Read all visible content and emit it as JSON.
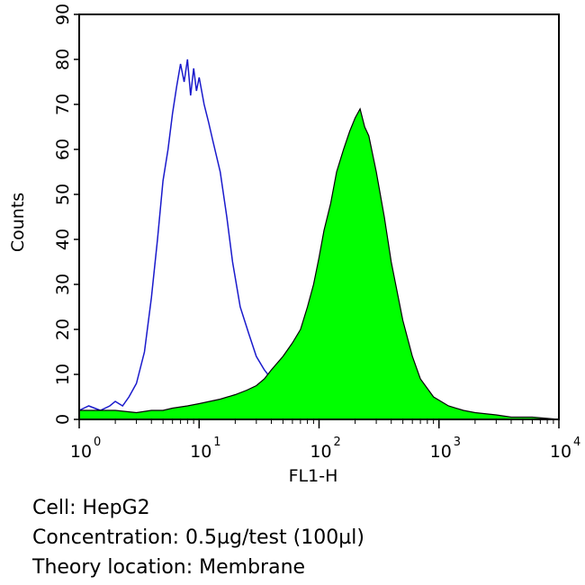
{
  "chart_data": {
    "type": "area",
    "xlabel": "FL1-H",
    "ylabel": "Counts",
    "x_scale": "log",
    "xlim": [
      1,
      10000
    ],
    "ylim": [
      0,
      90
    ],
    "x_ticks": [
      {
        "base": "10",
        "exp": "0",
        "value": 1
      },
      {
        "base": "10",
        "exp": "1",
        "value": 10
      },
      {
        "base": "10",
        "exp": "2",
        "value": 100
      },
      {
        "base": "10",
        "exp": "3",
        "value": 1000
      },
      {
        "base": "10",
        "exp": "4",
        "value": 10000
      }
    ],
    "y_ticks": [
      "0",
      "10",
      "20",
      "30",
      "40",
      "50",
      "60",
      "70",
      "80",
      "90"
    ],
    "series": [
      {
        "style": "outline",
        "color": "#1a1acc",
        "points": [
          [
            1.0,
            2
          ],
          [
            1.2,
            3
          ],
          [
            1.5,
            2
          ],
          [
            1.8,
            3
          ],
          [
            2.0,
            4
          ],
          [
            2.3,
            3
          ],
          [
            2.6,
            5
          ],
          [
            3.0,
            8
          ],
          [
            3.5,
            15
          ],
          [
            4.0,
            27
          ],
          [
            4.5,
            40
          ],
          [
            5.0,
            53
          ],
          [
            5.5,
            60
          ],
          [
            6.0,
            68
          ],
          [
            6.5,
            74
          ],
          [
            7.0,
            79
          ],
          [
            7.5,
            75
          ],
          [
            8.0,
            80
          ],
          [
            8.5,
            72
          ],
          [
            9.0,
            78
          ],
          [
            9.5,
            73
          ],
          [
            10.0,
            76
          ],
          [
            11,
            70
          ],
          [
            12,
            66
          ],
          [
            13,
            62
          ],
          [
            15,
            55
          ],
          [
            17,
            45
          ],
          [
            19,
            35
          ],
          [
            22,
            25
          ],
          [
            26,
            19
          ],
          [
            30,
            14
          ],
          [
            35,
            11
          ],
          [
            40,
            9
          ],
          [
            45,
            8
          ],
          [
            50,
            7
          ],
          [
            60,
            5
          ],
          [
            80,
            3
          ],
          [
            150,
            1
          ],
          [
            500,
            0
          ],
          [
            3000,
            0
          ],
          [
            10000,
            0
          ]
        ]
      },
      {
        "style": "filled",
        "color": "#00ff00",
        "points": [
          [
            1.0,
            2
          ],
          [
            1.5,
            2
          ],
          [
            2.0,
            2
          ],
          [
            3.0,
            1.5
          ],
          [
            4.0,
            2
          ],
          [
            5.0,
            2
          ],
          [
            6.0,
            2.5
          ],
          [
            8.0,
            3
          ],
          [
            10,
            3.5
          ],
          [
            15,
            4.5
          ],
          [
            20,
            5.5
          ],
          [
            25,
            6.5
          ],
          [
            30,
            7.5
          ],
          [
            35,
            9
          ],
          [
            40,
            11
          ],
          [
            50,
            14
          ],
          [
            60,
            17
          ],
          [
            70,
            20
          ],
          [
            80,
            25
          ],
          [
            90,
            30
          ],
          [
            100,
            36
          ],
          [
            110,
            42
          ],
          [
            125,
            48
          ],
          [
            140,
            55
          ],
          [
            160,
            60
          ],
          [
            180,
            64
          ],
          [
            200,
            67
          ],
          [
            220,
            69
          ],
          [
            240,
            65
          ],
          [
            260,
            63
          ],
          [
            300,
            55
          ],
          [
            350,
            45
          ],
          [
            400,
            35
          ],
          [
            500,
            22
          ],
          [
            600,
            14
          ],
          [
            700,
            9
          ],
          [
            900,
            5
          ],
          [
            1200,
            3
          ],
          [
            1600,
            2
          ],
          [
            2000,
            1.5
          ],
          [
            3000,
            1
          ],
          [
            4000,
            0.5
          ],
          [
            6000,
            0.5
          ],
          [
            10000,
            0
          ]
        ]
      }
    ]
  },
  "caption": {
    "cell": "Cell: HepG2",
    "concentration": "Concentration: 0.5µg/test (100µl)",
    "location": "Theory location: Membrane"
  }
}
